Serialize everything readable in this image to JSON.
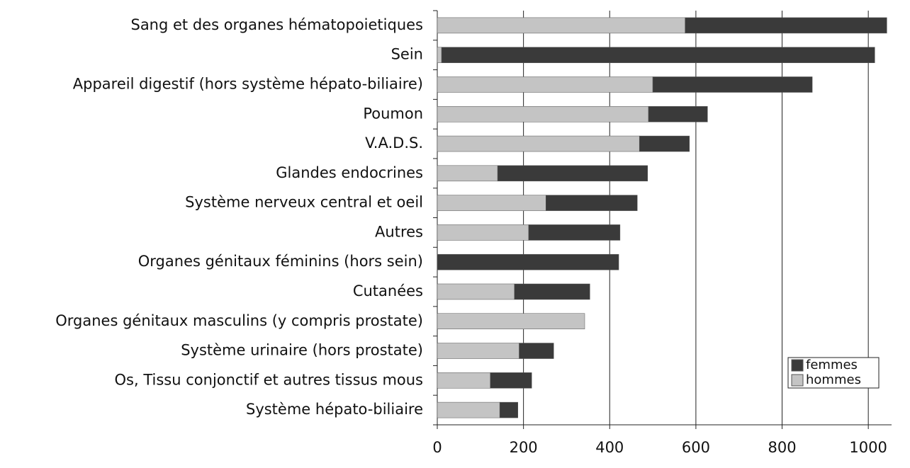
{
  "chart_data": {
    "type": "bar",
    "orientation": "horizontal",
    "stacked": true,
    "categories": [
      "Sang et des organes hématopoietiques",
      "Sein",
      "Appareil digestif (hors système hépato-biliaire)",
      "Poumon",
      "V.A.D.S.",
      "Glandes endocrines",
      "Système nerveux central et oeil",
      "Autres",
      "Organes génitaux féminins (hors sein)",
      "Cutanées",
      "Organes génitaux masculins (y compris prostate)",
      "Système urinaire (hors prostate)",
      "Os, Tissu conjonctif et autres tissus mous",
      "Système hépato-biliaire"
    ],
    "series": [
      {
        "name": "hommes",
        "color": "#c4c4c4",
        "values": [
          575,
          10,
          500,
          490,
          469,
          140,
          252,
          212,
          0,
          179,
          342,
          190,
          123,
          145
        ]
      },
      {
        "name": "femmes",
        "color": "#3a3a3a",
        "values": [
          468,
          1005,
          370,
          137,
          116,
          348,
          212,
          212,
          421,
          175,
          0,
          80,
          96,
          42
        ]
      }
    ],
    "xlim": [
      0,
      1054
    ],
    "xticks": [
      0,
      200,
      400,
      600,
      800,
      1000
    ],
    "grid": true,
    "legend": "lower right"
  }
}
